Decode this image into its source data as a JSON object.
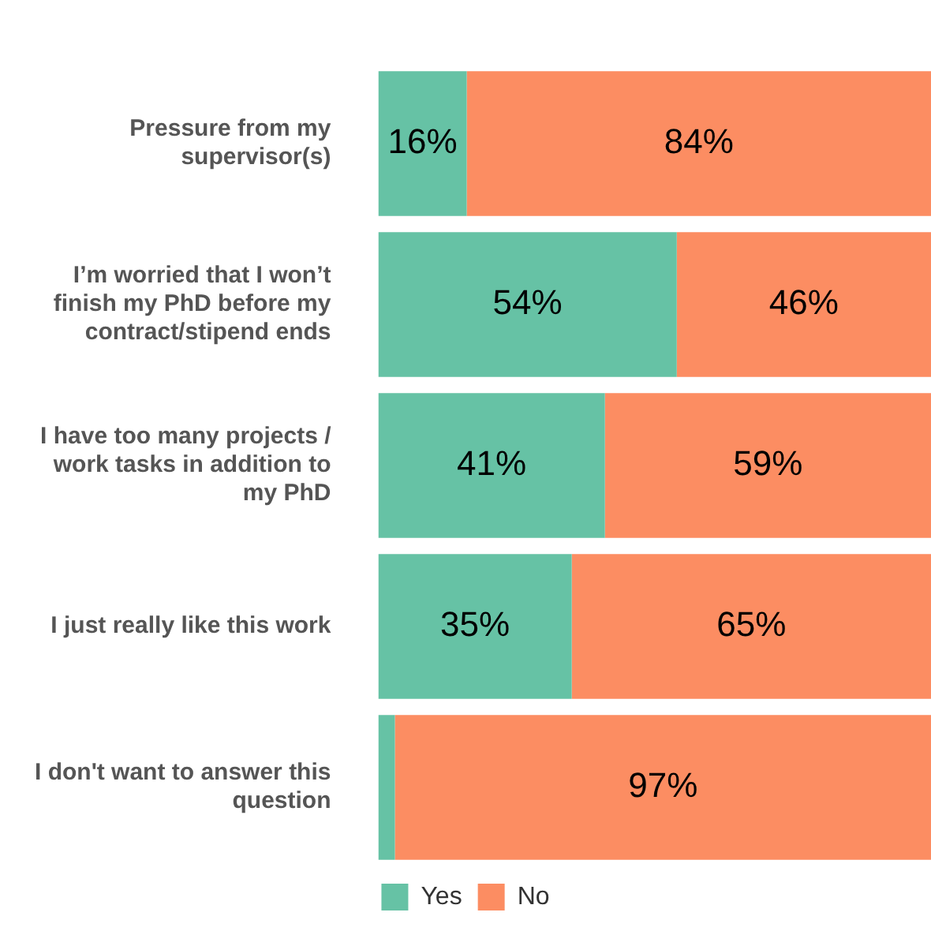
{
  "chart_data": {
    "type": "bar",
    "orientation": "horizontal",
    "stacked": true,
    "categories": [
      "Pressure from my supervisor(s)",
      "I’m worried that I won’t finish my PhD before my contract/stipend ends",
      "I have too many projects / work tasks in addition to my PhD",
      "I just really like this work",
      "I don't want to answer this question"
    ],
    "series": [
      {
        "name": "Yes",
        "color": "#66c2a5",
        "values": [
          16,
          54,
          41,
          35,
          3
        ],
        "value_labels": [
          "16%",
          "54%",
          "41%",
          "35%",
          null
        ]
      },
      {
        "name": "No",
        "color": "#fc8d62",
        "values": [
          84,
          46,
          59,
          65,
          97
        ],
        "value_labels": [
          "84%",
          "46%",
          "59%",
          "65%",
          "97%"
        ]
      }
    ],
    "xlim": [
      0,
      100
    ],
    "tick_labels": "y",
    "legend": "bottom"
  }
}
